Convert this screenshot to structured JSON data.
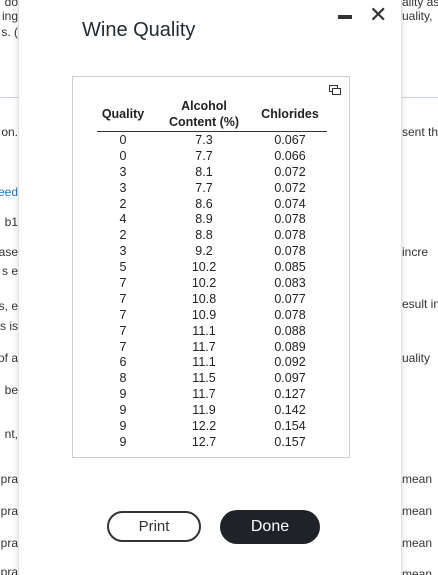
{
  "modal": {
    "title": "Wine Quality",
    "buttons": {
      "print": "Print",
      "done": "Done"
    }
  },
  "table": {
    "headers": {
      "quality": "Quality",
      "alcohol": "Alcohol Content (%)",
      "chlorides": "Chlorides"
    },
    "rows": [
      {
        "q": "0",
        "a": "7.3",
        "c": "0.067"
      },
      {
        "q": "0",
        "a": "7.7",
        "c": "0.066"
      },
      {
        "q": "3",
        "a": "8.1",
        "c": "0.072"
      },
      {
        "q": "3",
        "a": "7.7",
        "c": "0.072"
      },
      {
        "q": "2",
        "a": "8.6",
        "c": "0.074"
      },
      {
        "q": "4",
        "a": "8.9",
        "c": "0.078"
      },
      {
        "q": "2",
        "a": "8.8",
        "c": "0.078"
      },
      {
        "q": "3",
        "a": "9.2",
        "c": "0.078"
      },
      {
        "q": "5",
        "a": "10.2",
        "c": "0.085"
      },
      {
        "q": "7",
        "a": "10.2",
        "c": "0.083"
      },
      {
        "q": "7",
        "a": "10.8",
        "c": "0.077"
      },
      {
        "q": "7",
        "a": "10.9",
        "c": "0.078"
      },
      {
        "q": "7",
        "a": "11.1",
        "c": "0.088"
      },
      {
        "q": "7",
        "a": "11.7",
        "c": "0.089"
      },
      {
        "q": "6",
        "a": "11.1",
        "c": "0.092"
      },
      {
        "q": "8",
        "a": "11.5",
        "c": "0.097"
      },
      {
        "q": "9",
        "a": "11.7",
        "c": "0.127"
      },
      {
        "q": "9",
        "a": "11.9",
        "c": "0.142"
      },
      {
        "q": "9",
        "a": "12.2",
        "c": "0.154"
      },
      {
        "q": "9",
        "a": "12.7",
        "c": "0.157"
      }
    ]
  },
  "background": {
    "left_fragments": [
      "do",
      "ing",
      "s. (",
      "on.",
      "eed",
      "b1",
      "ase",
      "s e",
      "s, e",
      "s is",
      "of a",
      "be",
      "nt,",
      "pra",
      "pra",
      "pra",
      "pra"
    ],
    "right_fragments": [
      "ality as",
      "uality,",
      "sent th",
      "incre",
      "esult in",
      "uality",
      "mean",
      "mean",
      "mean",
      "mean"
    ]
  },
  "icons": {
    "minimize": "minimize-icon",
    "close": "close-icon",
    "copy": "copy-icon"
  },
  "colors": {
    "done_bg": "#1e2328",
    "title": "#1f2a33",
    "link": "#1a73c9"
  }
}
